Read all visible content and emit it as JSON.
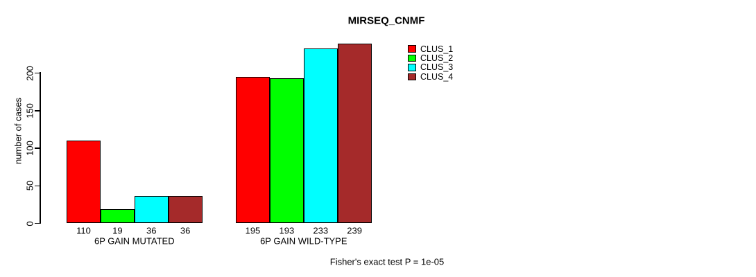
{
  "chart_data": {
    "type": "bar",
    "title": "MIRSEQ_CNMF",
    "ylabel": "number of cases",
    "xlabel": "",
    "yticks": [
      0,
      50,
      100,
      150,
      200
    ],
    "ylim": [
      0,
      245
    ],
    "grid": false,
    "legend_position": "top-right-inside",
    "bar_value_labels": true,
    "categories": [
      "6P GAIN MUTATED",
      "6P GAIN WILD-TYPE"
    ],
    "series": [
      {
        "name": "CLUS_1",
        "color": "#FF0000",
        "values": [
          110,
          195
        ]
      },
      {
        "name": "CLUS_2",
        "color": "#00FF00",
        "values": [
          19,
          193
        ]
      },
      {
        "name": "CLUS_3",
        "color": "#00FFFF",
        "values": [
          36,
          233
        ]
      },
      {
        "name": "CLUS_4",
        "color": "#A52A2A",
        "values": [
          36,
          239
        ]
      }
    ],
    "annotation": "Fisher's exact test P = 1e-05"
  }
}
